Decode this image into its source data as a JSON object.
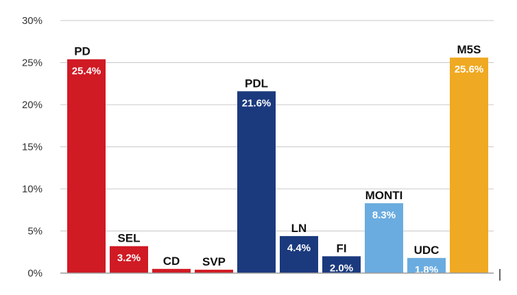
{
  "chart_data": {
    "type": "bar",
    "title": "",
    "xlabel": "",
    "ylabel": "",
    "ylim": [
      0,
      30
    ],
    "yticks": [
      "0%",
      "5%",
      "10%",
      "15%",
      "20%",
      "25%",
      "30%"
    ],
    "grid": true,
    "categories": [
      "PD",
      "SEL",
      "CD",
      "SVP",
      "PDL",
      "LN",
      "FI",
      "MONTI",
      "UDC",
      "M5S"
    ],
    "values": [
      25.4,
      3.2,
      0.5,
      0.4,
      21.6,
      4.4,
      2.0,
      8.3,
      1.8,
      25.6
    ],
    "value_labels": [
      "25.4%",
      "3.2%",
      "",
      "",
      "21.6%",
      "4.4%",
      "2.0%",
      "8.3%",
      "1.8%",
      "25.6%"
    ],
    "colors": [
      "#d01a24",
      "#d01a24",
      "#d01a24",
      "#d01a24",
      "#1b3a7e",
      "#1b3a7e",
      "#1b3a7e",
      "#6aace0",
      "#6aace0",
      "#f0a922"
    ]
  }
}
